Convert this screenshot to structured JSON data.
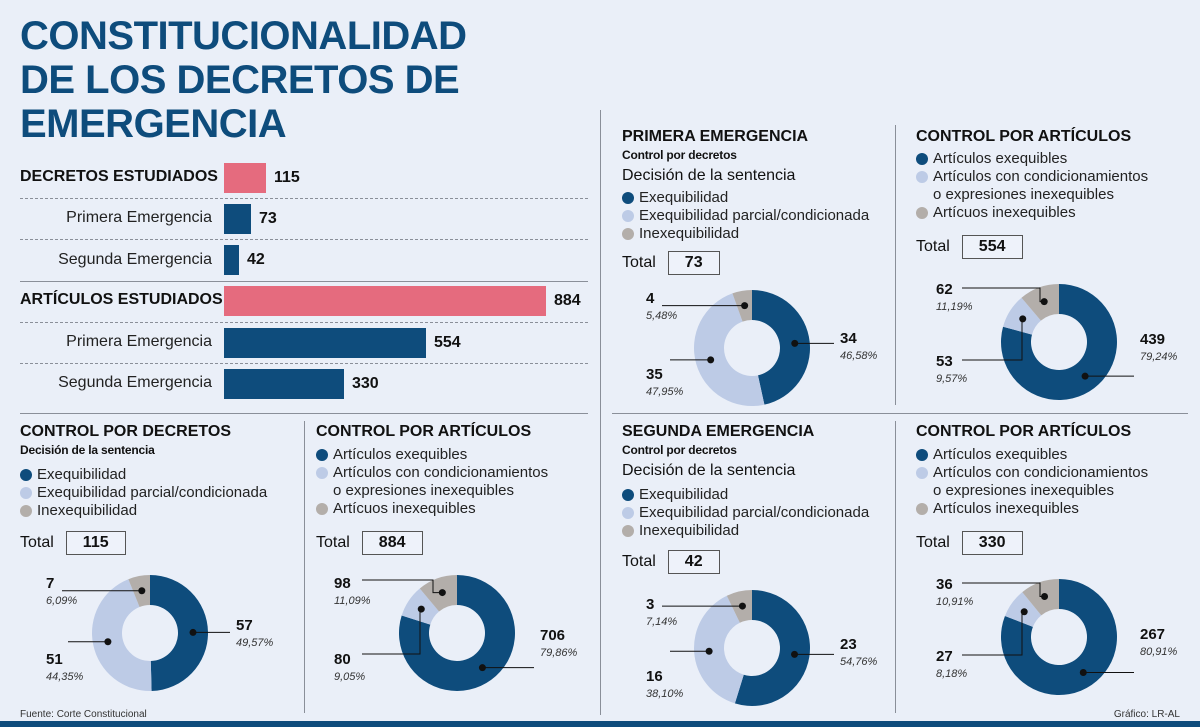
{
  "title_lines": [
    "CONSTITUCIONALIDAD",
    "DE LOS DECRETOS DE",
    "EMERGENCIA"
  ],
  "colors": {
    "title": "#0e4c7c",
    "pink": "#e56b7e",
    "dark": "#0e4c7c",
    "light": "#bdcbe6",
    "gray": "#b3aeaa"
  },
  "legend_decretos": [
    "Exequibilidad",
    "Exequibilidad parcial/condicionada",
    "Inexequibilidad"
  ],
  "legend_articulos": [
    "Artículos exequibles",
    "Artículos con condicionamientos",
    "o expresiones inexequibles"
  ],
  "chart_data": [
    {
      "type": "bar",
      "title": "",
      "categories": [
        "DECRETOS ESTUDIADOS",
        "Primera Emergencia",
        "Segunda Emergencia",
        "ARTÍCULOS ESTUDIADOS",
        "Primera Emergencia",
        "Segunda Emergencia"
      ],
      "values": [
        115,
        73,
        42,
        884,
        554,
        330
      ],
      "labels": [
        "115",
        "73",
        "42",
        "884",
        "554",
        "330"
      ]
    },
    {
      "type": "pie",
      "id": "d_total",
      "title": "CONTROL POR DECRETOS",
      "subtitle": "Decisión de la sentencia",
      "legend": [
        "Exequibilidad",
        "Exequibilidad parcial/condicionada",
        "Inexequibilidad"
      ],
      "total_label": "Total",
      "total": "115",
      "slices": [
        {
          "value": 57,
          "label": "57",
          "pct": "49,57%"
        },
        {
          "value": 51,
          "label": "51",
          "pct": "44,35%"
        },
        {
          "value": 7,
          "label": "7",
          "pct": "6,09%"
        }
      ]
    },
    {
      "type": "pie",
      "id": "a_total",
      "title": "CONTROL POR ARTÍCULOS",
      "legend": [
        "Artículos exequibles",
        "Artículos con condicionamientos",
        "o expresiones inexequibles",
        "Artícuos inexequibles"
      ],
      "total_label": "Total",
      "total": "884",
      "slices": [
        {
          "value": 706,
          "label": "706",
          "pct": "79,86%"
        },
        {
          "value": 80,
          "label": "80",
          "pct": "9,05%"
        },
        {
          "value": 98,
          "label": "98",
          "pct": "11,09%"
        }
      ]
    },
    {
      "type": "pie",
      "id": "d_e1",
      "title": "PRIMERA EMERGENCIA",
      "subtitle": "Control por decretos",
      "subtitle2": "Decisión de la sentencia",
      "legend": [
        "Exequibilidad",
        "Exequibilidad parcial/condicionada",
        "Inexequibilidad"
      ],
      "total_label": "Total",
      "total": "73",
      "slices": [
        {
          "value": 34,
          "label": "34",
          "pct": "46,58%"
        },
        {
          "value": 35,
          "label": "35",
          "pct": "47,95%"
        },
        {
          "value": 4,
          "label": "4",
          "pct": "5,48%"
        }
      ]
    },
    {
      "type": "pie",
      "id": "a_e1",
      "title": "CONTROL POR ARTÍCULOS",
      "legend": [
        "Artículos exequibles",
        "Artículos con condicionamientos",
        "o expresiones inexequibles",
        "Artícuos inexequibles"
      ],
      "total_label": "Total",
      "total": "554",
      "slices": [
        {
          "value": 439,
          "label": "439",
          "pct": "79,24%"
        },
        {
          "value": 53,
          "label": "53",
          "pct": "9,57%"
        },
        {
          "value": 62,
          "label": "62",
          "pct": "11,19%"
        }
      ]
    },
    {
      "type": "pie",
      "id": "d_e2",
      "title": "SEGUNDA EMERGENCIA",
      "subtitle": "Control por decretos",
      "subtitle2": "Decisión de la sentencia",
      "legend": [
        "Exequibilidad",
        "Exequibilidad parcial/condicionada",
        "Inexequibilidad"
      ],
      "total_label": "Total",
      "total": "42",
      "slices": [
        {
          "value": 23,
          "label": "23",
          "pct": "54,76%"
        },
        {
          "value": 16,
          "label": "16",
          "pct": "38,10%"
        },
        {
          "value": 3,
          "label": "3",
          "pct": "7,14%"
        }
      ]
    },
    {
      "type": "pie",
      "id": "a_e2",
      "title": "CONTROL POR ARTÍCULOS",
      "legend": [
        "Artículos exequibles",
        "Artículos con condicionamientos",
        "o expresiones inexequibles",
        "Artículos inexequibles"
      ],
      "total_label": "Total",
      "total": "330",
      "slices": [
        {
          "value": 267,
          "label": "267",
          "pct": "80,91%"
        },
        {
          "value": 27,
          "label": "27",
          "pct": "8,18%"
        },
        {
          "value": 36,
          "label": "36",
          "pct": "10,91%"
        }
      ]
    }
  ],
  "footer": {
    "source": "Fuente: Corte Constitucional",
    "credit": "Gráfico: LR-AL"
  }
}
